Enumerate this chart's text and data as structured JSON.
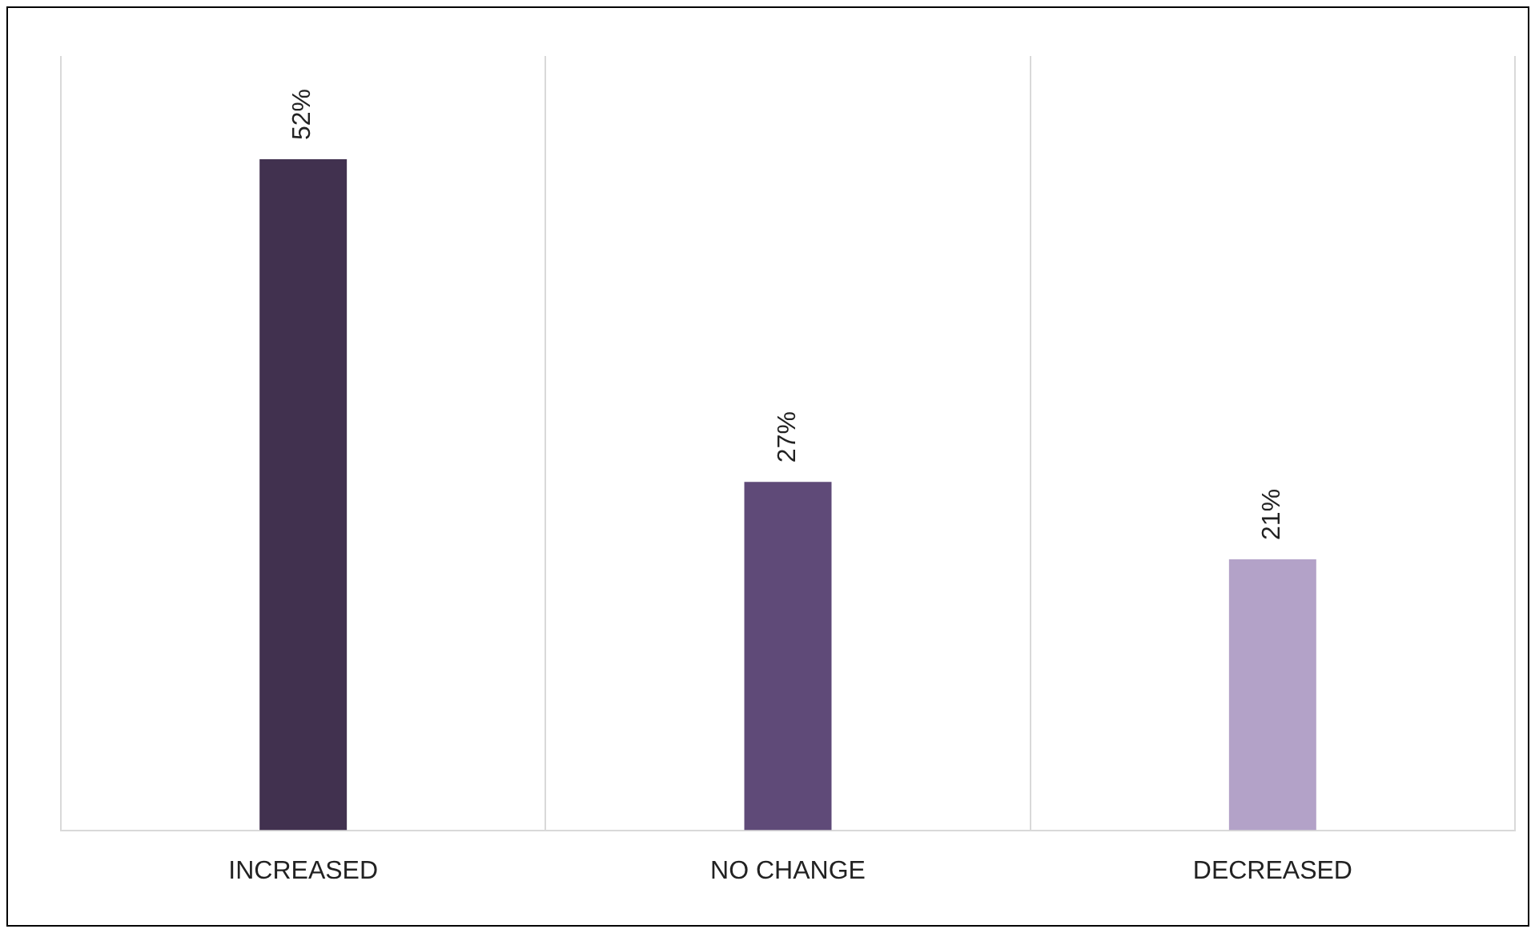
{
  "chart_data": {
    "type": "bar",
    "categories": [
      "INCREASED",
      "NO CHANGE",
      "DECREASED"
    ],
    "values": [
      52,
      27,
      21
    ],
    "colors": [
      "#41314f",
      "#5f4a78",
      "#b3a2c8"
    ],
    "value_labels": [
      "52%",
      "27%",
      "21%"
    ],
    "grid": "x",
    "legend": false
  }
}
